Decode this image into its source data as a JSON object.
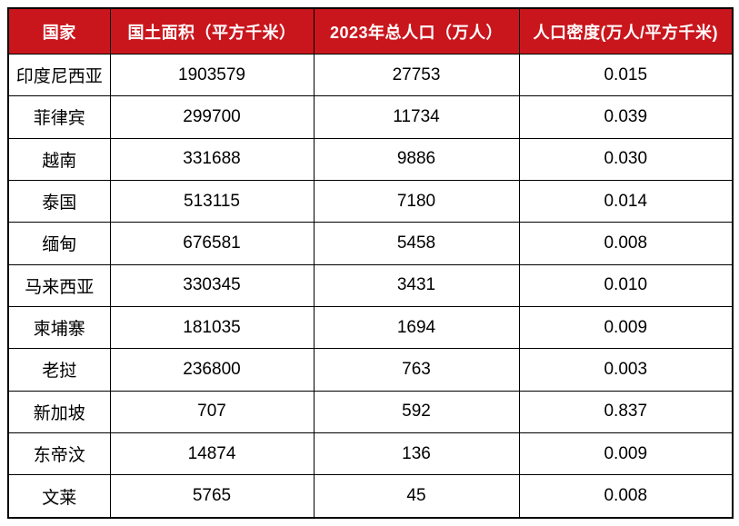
{
  "accent_color": "#C9161D",
  "border_color": "#000000",
  "table": {
    "headers": [
      "国家",
      "国土面积（平方千米）",
      "2023年总人口（万人）",
      "人口密度(万人/平方千米)"
    ],
    "rows": [
      [
        "印度尼西亚",
        "1903579",
        "27753",
        "0.015"
      ],
      [
        "菲律宾",
        "299700",
        "11734",
        "0.039"
      ],
      [
        "越南",
        "331688",
        "9886",
        "0.030"
      ],
      [
        "泰国",
        "513115",
        "7180",
        "0.014"
      ],
      [
        "缅甸",
        "676581",
        "5458",
        "0.008"
      ],
      [
        "马来西亚",
        "330345",
        "3431",
        "0.010"
      ],
      [
        "柬埔寨",
        "181035",
        "1694",
        "0.009"
      ],
      [
        "老挝",
        "236800",
        "763",
        "0.003"
      ],
      [
        "新加坡",
        "707",
        "592",
        "0.837"
      ],
      [
        "东帝汶",
        "14874",
        "136",
        "0.009"
      ],
      [
        "文莱",
        "5765",
        "45",
        "0.008"
      ]
    ]
  },
  "chart_data": {
    "type": "table",
    "title": "",
    "columns": [
      "国家",
      "国土面积（平方千米）",
      "2023年总人口（万人）",
      "人口密度(万人/平方千米)"
    ],
    "categories": [
      "印度尼西亚",
      "菲律宾",
      "越南",
      "泰国",
      "缅甸",
      "马来西亚",
      "柬埔寨",
      "老挝",
      "新加坡",
      "东帝汶",
      "文莱"
    ],
    "series": [
      {
        "name": "国土面积（平方千米）",
        "values": [
          1903579,
          299700,
          331688,
          513115,
          676581,
          330345,
          181035,
          236800,
          707,
          14874,
          5765
        ]
      },
      {
        "name": "2023年总人口（万人）",
        "values": [
          27753,
          11734,
          9886,
          7180,
          5458,
          3431,
          1694,
          763,
          592,
          136,
          45
        ]
      },
      {
        "name": "人口密度(万人/平方千米)",
        "values": [
          0.015,
          0.039,
          0.03,
          0.014,
          0.008,
          0.01,
          0.009,
          0.003,
          0.837,
          0.009,
          0.008
        ]
      }
    ],
    "layout_hints": {
      "header_background": "#C9161D",
      "header_text_color": "#ffffff",
      "grid": true,
      "cell_alignment": "center"
    }
  }
}
